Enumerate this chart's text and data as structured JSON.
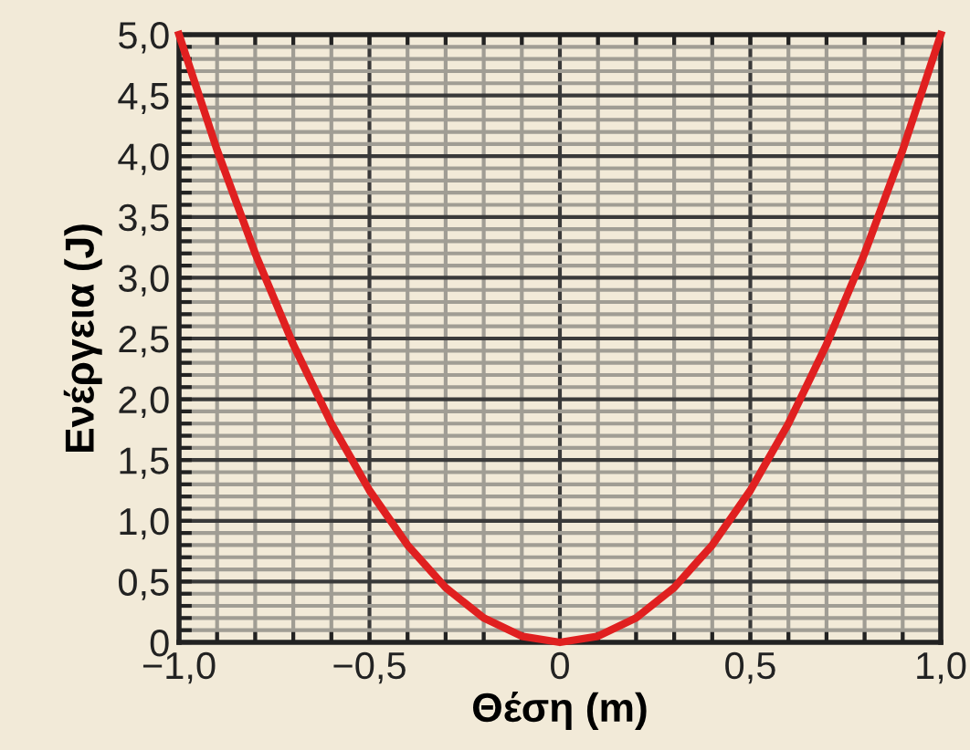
{
  "chart_data": {
    "type": "line",
    "xlabel": "Θέση (m)",
    "ylabel": "Ενέργεια (J)",
    "x": [
      -1.0,
      -0.9,
      -0.8,
      -0.7,
      -0.6,
      -0.5,
      -0.4,
      -0.3,
      -0.2,
      -0.1,
      0.0,
      0.1,
      0.2,
      0.3,
      0.4,
      0.5,
      0.6,
      0.7,
      0.8,
      0.9,
      1.0
    ],
    "series": [
      {
        "color": "#e02020",
        "values": [
          5.0,
          4.05,
          3.2,
          2.45,
          1.8,
          1.25,
          0.8,
          0.45,
          0.2,
          0.05,
          0.0,
          0.05,
          0.2,
          0.45,
          0.8,
          1.25,
          1.8,
          2.45,
          3.2,
          4.05,
          5.0
        ]
      }
    ],
    "xlim": [
      -1.0,
      1.0
    ],
    "ylim": [
      0,
      5.0
    ],
    "xticks": [
      {
        "value": -1.0,
        "label": "−1,0"
      },
      {
        "value": -0.5,
        "label": "−0,5"
      },
      0,
      {
        "value": 0.5,
        "label": "0,5"
      },
      {
        "value": 1.0,
        "label": "1,0"
      }
    ],
    "yticks": [
      0,
      {
        "value": 0.5,
        "label": "0,5"
      },
      {
        "value": 1.0,
        "label": "1,0"
      },
      {
        "value": 1.5,
        "label": "1,5"
      },
      {
        "value": 2.0,
        "label": "2,0"
      },
      {
        "value": 2.5,
        "label": "2,5"
      },
      {
        "value": 3.0,
        "label": "3,0"
      },
      {
        "value": 3.5,
        "label": "3,5"
      },
      {
        "value": 4.0,
        "label": "4,0"
      },
      {
        "value": 4.5,
        "label": "4,5"
      },
      {
        "value": 5.0,
        "label": "5,0"
      }
    ],
    "grid": true,
    "legend": false,
    "marker": "none",
    "line_style": "solid"
  }
}
